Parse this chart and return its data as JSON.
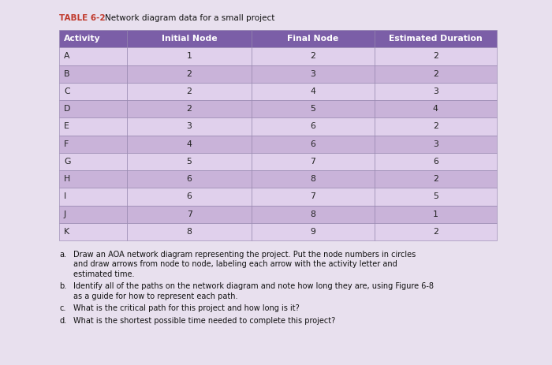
{
  "title_prefix": "TABLE 6-2",
  "title_text": "Network diagram data for a small project",
  "headers": [
    "Activity",
    "Initial Node",
    "Final Node",
    "Estimated Duration"
  ],
  "rows": [
    [
      "A",
      "1",
      "2",
      "2"
    ],
    [
      "B",
      "2",
      "3",
      "2"
    ],
    [
      "C",
      "2",
      "4",
      "3"
    ],
    [
      "D",
      "2",
      "5",
      "4"
    ],
    [
      "E",
      "3",
      "6",
      "2"
    ],
    [
      "F",
      "4",
      "6",
      "3"
    ],
    [
      "G",
      "5",
      "7",
      "6"
    ],
    [
      "H",
      "6",
      "8",
      "2"
    ],
    [
      "I",
      "6",
      "7",
      "5"
    ],
    [
      "J",
      "7",
      "8",
      "1"
    ],
    [
      "K",
      "8",
      "9",
      "2"
    ]
  ],
  "header_bg": "#7B5EA7",
  "row_bg_light": "#E0D0EC",
  "row_bg_dark": "#C9B3D9",
  "header_text_color": "#FFFFFF",
  "row_text_color": "#222222",
  "title_prefix_color": "#C0392B",
  "title_text_color": "#111111",
  "bg_color": "#E8E0EE",
  "footer_items": [
    {
      "label": "a.",
      "text": "Draw an AOA network diagram representing the project. Put the node numbers in circles\nand draw arrows from node to node, labeling each arrow with the activity letter and\nestimated time."
    },
    {
      "label": "b.",
      "text": "Identify all of the paths on the network diagram and note how long they are, using Figure 6-8\nas a guide for how to represent each path."
    },
    {
      "label": "c.",
      "text": "What is the critical path for this project and how long is it?"
    },
    {
      "label": "d.",
      "text": "What is the shortest possible time needed to complete this project?"
    }
  ],
  "figsize": [
    7.0,
    4.63
  ],
  "dpi": 100
}
